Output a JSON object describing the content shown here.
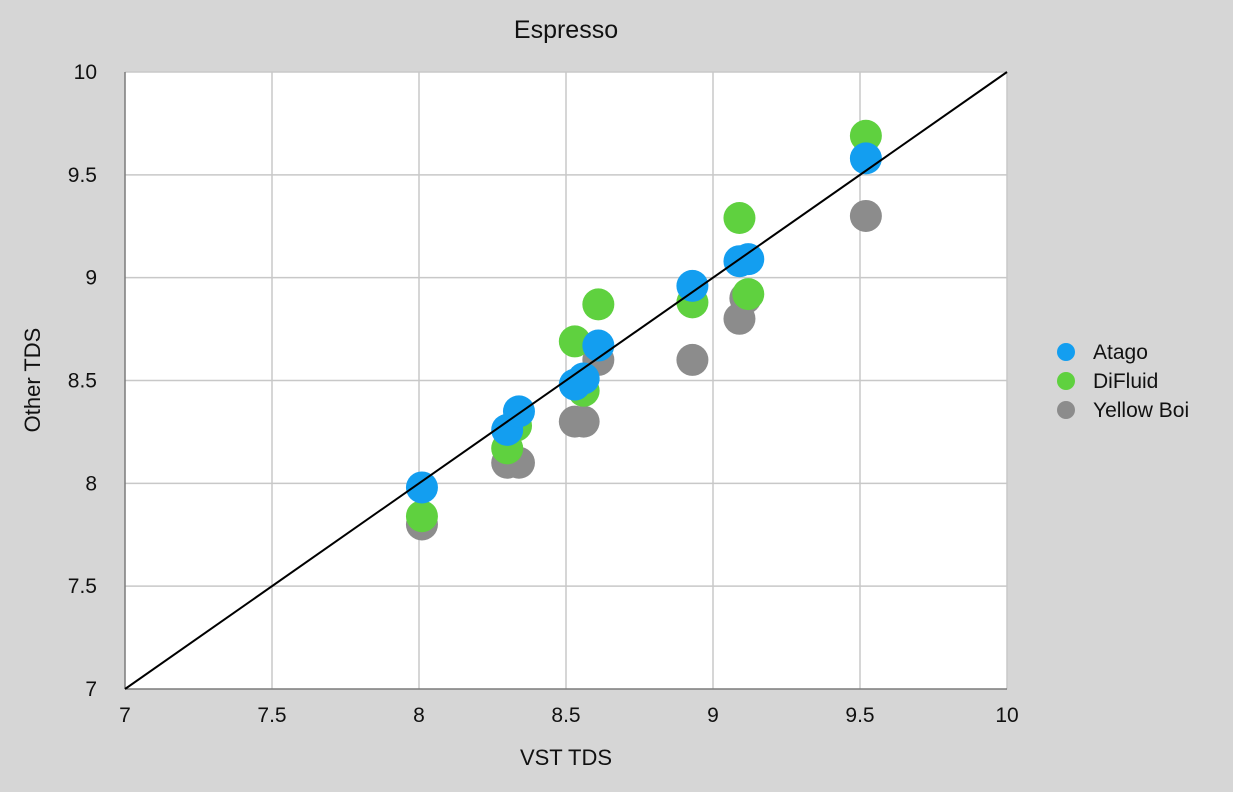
{
  "chart_data": {
    "type": "scatter",
    "title": "Espresso",
    "xlabel": "VST TDS",
    "ylabel": "Other TDS",
    "xlim": [
      7,
      10
    ],
    "ylim": [
      7,
      10
    ],
    "xticks": [
      "7",
      "7.5",
      "8",
      "8.5",
      "9",
      "9.5",
      "10"
    ],
    "yticks": [
      "7",
      "7.5",
      "8",
      "8.5",
      "9",
      "9.5",
      "10"
    ],
    "grid": true,
    "legend_position": "right",
    "reference_line": {
      "from": [
        7,
        7
      ],
      "to": [
        10,
        10
      ],
      "color": "#000000"
    },
    "series": [
      {
        "name": "Yellow Boi",
        "color": "#8c8c8c",
        "points": [
          [
            8.01,
            7.8
          ],
          [
            8.3,
            8.1
          ],
          [
            8.34,
            8.1
          ],
          [
            8.53,
            8.3
          ],
          [
            8.56,
            8.3
          ],
          [
            8.61,
            8.6
          ],
          [
            8.93,
            8.6
          ],
          [
            9.09,
            8.8
          ],
          [
            9.11,
            8.9
          ],
          [
            9.52,
            9.3
          ]
        ]
      },
      {
        "name": "DiFluid",
        "color": "#5fd13f",
        "points": [
          [
            8.01,
            7.84
          ],
          [
            8.3,
            8.17
          ],
          [
            8.33,
            8.28
          ],
          [
            8.53,
            8.69
          ],
          [
            8.56,
            8.45
          ],
          [
            8.61,
            8.87
          ],
          [
            8.93,
            8.88
          ],
          [
            9.09,
            9.29
          ],
          [
            9.12,
            8.92
          ],
          [
            9.52,
            9.69
          ]
        ]
      },
      {
        "name": "Atago",
        "color": "#139ef0",
        "points": [
          [
            8.01,
            7.98
          ],
          [
            8.3,
            8.26
          ],
          [
            8.34,
            8.35
          ],
          [
            8.53,
            8.48
          ],
          [
            8.56,
            8.51
          ],
          [
            8.61,
            8.67
          ],
          [
            8.93,
            8.96
          ],
          [
            9.09,
            9.08
          ],
          [
            9.12,
            9.09
          ],
          [
            9.52,
            9.58
          ]
        ]
      }
    ],
    "legend": [
      {
        "name": "Atago",
        "color": "#139ef0"
      },
      {
        "name": "DiFluid",
        "color": "#5fd13f"
      },
      {
        "name": "Yellow Boi",
        "color": "#8c8c8c"
      }
    ]
  }
}
